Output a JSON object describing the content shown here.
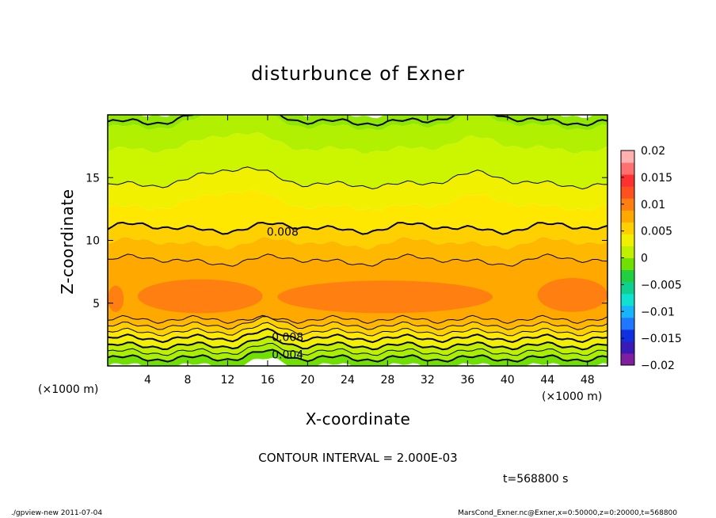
{
  "chart_data": {
    "type": "heatmap",
    "title": "disturbunce of Exner",
    "xlabel": "X-coordinate",
    "ylabel": "Z-coordinate",
    "x_unit": "(×1000 m)",
    "y_unit": "(×1000 m)",
    "xlim": [
      0,
      50
    ],
    "ylim": [
      0,
      20
    ],
    "x_ticks": [
      4,
      8,
      12,
      16,
      20,
      24,
      28,
      32,
      36,
      40,
      44,
      48
    ],
    "y_ticks": [
      5,
      10,
      15
    ],
    "x_tick_labels": [
      "4",
      "8",
      "12",
      "16",
      "20",
      "24",
      "28",
      "32",
      "36",
      "40",
      "44",
      "48"
    ],
    "y_tick_labels": [
      "5",
      "10",
      "15"
    ],
    "colorbar": {
      "range": [
        -0.02,
        0.02
      ],
      "tick_values": [
        0.02,
        0.015,
        0.01,
        0.005,
        0,
        -0.005,
        -0.01,
        -0.015,
        -0.02
      ],
      "tick_labels": [
        "0.02",
        "0.015",
        "0.01",
        "0.005",
        "0",
        "−0.005",
        "−0.01",
        "−0.015",
        "−0.02"
      ],
      "colors": [
        "#7f1fa0",
        "#3a1ab5",
        "#1030e0",
        "#1f78ff",
        "#19b4ff",
        "#10e0d0",
        "#10d090",
        "#20d040",
        "#70e000",
        "#c0f000",
        "#f0f000",
        "#ffd000",
        "#ffa800",
        "#ff8010",
        "#ff5020",
        "#ff3030",
        "#ff7070",
        "#ffb0b0"
      ]
    },
    "contour_interval": "CONTOUR INTERVAL = 2.000E-03",
    "contour_labels": [
      {
        "text": "0.008",
        "x": 17.5,
        "z": 10.7
      },
      {
        "text": "0.008",
        "x": 18.0,
        "z": 2.3
      },
      {
        "text": "0.004",
        "x": 18.0,
        "z": 0.9
      }
    ],
    "time_label": "t=568800 s",
    "layers": [
      {
        "z0": 0.0,
        "z1": 0.6,
        "value": 0.001,
        "color": "#70e000"
      },
      {
        "z0": 0.6,
        "z1": 1.1,
        "value": 0.003,
        "color": "#a8f000"
      },
      {
        "z0": 1.1,
        "z1": 1.6,
        "value": 0.005,
        "color": "#c0f000"
      },
      {
        "z0": 1.6,
        "z1": 2.2,
        "value": 0.007,
        "color": "#f0f000"
      },
      {
        "z0": 2.2,
        "z1": 2.7,
        "value": 0.008,
        "color": "#ffe800"
      },
      {
        "z0": 2.7,
        "z1": 3.2,
        "value": 0.009,
        "color": "#ffd000"
      },
      {
        "z0": 3.2,
        "z1": 3.7,
        "value": 0.01,
        "color": "#ffb800"
      },
      {
        "z0": 3.7,
        "z1": 8.4,
        "value": 0.011,
        "color": "#ffa800"
      },
      {
        "z0": 8.4,
        "z1": 9.8,
        "value": 0.01,
        "color": "#ffb800"
      },
      {
        "z0": 9.8,
        "z1": 11.0,
        "value": 0.009,
        "color": "#ffd000"
      },
      {
        "z0": 11.0,
        "z1": 12.6,
        "value": 0.008,
        "color": "#ffe800"
      },
      {
        "z0": 12.6,
        "z1": 14.4,
        "value": 0.007,
        "color": "#f0f000"
      },
      {
        "z0": 14.4,
        "z1": 17.2,
        "value": 0.006,
        "color": "#ccf500"
      },
      {
        "z0": 17.2,
        "z1": 19.0,
        "value": 0.005,
        "color": "#b0f000"
      },
      {
        "z0": 19.0,
        "z1": 20.0,
        "value": 0.004,
        "color": "#90e800"
      }
    ],
    "maxima_patches": [
      {
        "x0": 0,
        "x1": 1.6,
        "z0": 4.3,
        "z1": 6.4,
        "color": "#ff8010"
      },
      {
        "x0": 3,
        "x1": 15.5,
        "z0": 4.2,
        "z1": 6.9,
        "color": "#ff8010"
      },
      {
        "x0": 17,
        "x1": 38.5,
        "z0": 4.2,
        "z1": 6.8,
        "color": "#ff8010"
      },
      {
        "x0": 43,
        "x1": 50,
        "z0": 4.3,
        "z1": 7.0,
        "color": "#ff8010"
      }
    ],
    "contours": [
      {
        "z": 0.6,
        "heavy": true
      },
      {
        "z": 1.1,
        "heavy": false
      },
      {
        "z": 1.6,
        "heavy": true
      },
      {
        "z": 2.2,
        "heavy": true
      },
      {
        "z": 2.7,
        "heavy": false
      },
      {
        "z": 3.2,
        "heavy": false
      },
      {
        "z": 3.7,
        "heavy": false
      },
      {
        "z": 8.4,
        "heavy": false
      },
      {
        "z": 11.0,
        "heavy": true
      },
      {
        "z": 14.4,
        "heavy": false
      },
      {
        "z": 19.4,
        "heavy": true
      }
    ]
  },
  "footer": {
    "left": "./gpview-new  2011-07-04",
    "right": "MarsCond_Exner.nc@Exner,x=0:50000,z=0:20000,t=568800"
  }
}
